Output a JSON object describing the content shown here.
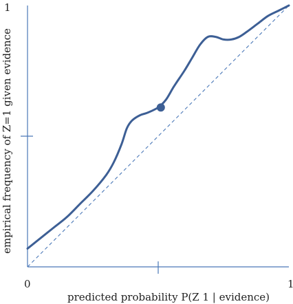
{
  "chart_data": {
    "type": "line",
    "xlabel": "predicted probability P(Z  1 | evidence)",
    "ylabel": "empirical frequency of Z=1 given evidence",
    "xlim": [
      0,
      1
    ],
    "ylim": [
      0,
      1
    ],
    "x_tick_labels": [
      "0",
      "1"
    ],
    "y_tick_labels": [
      "1"
    ],
    "mid_ticks": {
      "x": 0.5,
      "y": 0.5
    },
    "reference_line": {
      "x": [
        0,
        1
      ],
      "y": [
        0,
        1
      ],
      "style": "dashed"
    },
    "series": [
      {
        "x": [
          0.0,
          0.05,
          0.1,
          0.15,
          0.2,
          0.25,
          0.3,
          0.33,
          0.36,
          0.38,
          0.4,
          0.43,
          0.46,
          0.5,
          0.53,
          0.56,
          0.6,
          0.63,
          0.66,
          0.69,
          0.72,
          0.75,
          0.78,
          0.81,
          0.84,
          0.88,
          0.92,
          0.96,
          1.0
        ],
        "y": [
          0.07,
          0.11,
          0.15,
          0.19,
          0.24,
          0.29,
          0.35,
          0.4,
          0.47,
          0.53,
          0.56,
          0.58,
          0.59,
          0.61,
          0.64,
          0.69,
          0.75,
          0.8,
          0.85,
          0.88,
          0.88,
          0.87,
          0.87,
          0.88,
          0.9,
          0.93,
          0.96,
          0.98,
          1.0
        ],
        "style": "solid"
      }
    ],
    "highlight_point": {
      "x": 0.51,
      "y": 0.61
    },
    "grid": false
  }
}
